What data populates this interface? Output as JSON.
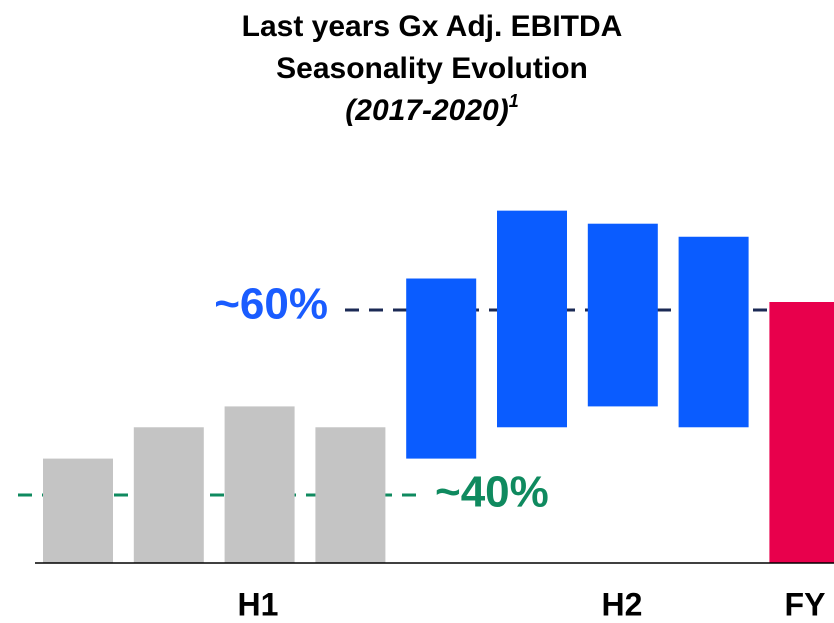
{
  "chart_data": {
    "type": "waterfall",
    "title": [
      "Last years Gx Adj. EBITDA",
      "Seasonality Evolution"
    ],
    "subtitle": "(2017-2020)",
    "footnote_mark": "1",
    "series": [
      {
        "name": "H1",
        "color": "#c4c4c4",
        "values": [
          40,
          52,
          60,
          52
        ]
      },
      {
        "name": "H2",
        "color": "#0a5cff",
        "values": [
          69,
          83,
          70,
          73
        ]
      },
      {
        "name": "FY",
        "color": "#e8004c",
        "values": [
          100
        ]
      }
    ],
    "annotations": [
      {
        "text": "~60%",
        "color": "#1a5cff"
      },
      {
        "text": "~40%",
        "color": "#0f8a5f"
      }
    ]
  }
}
